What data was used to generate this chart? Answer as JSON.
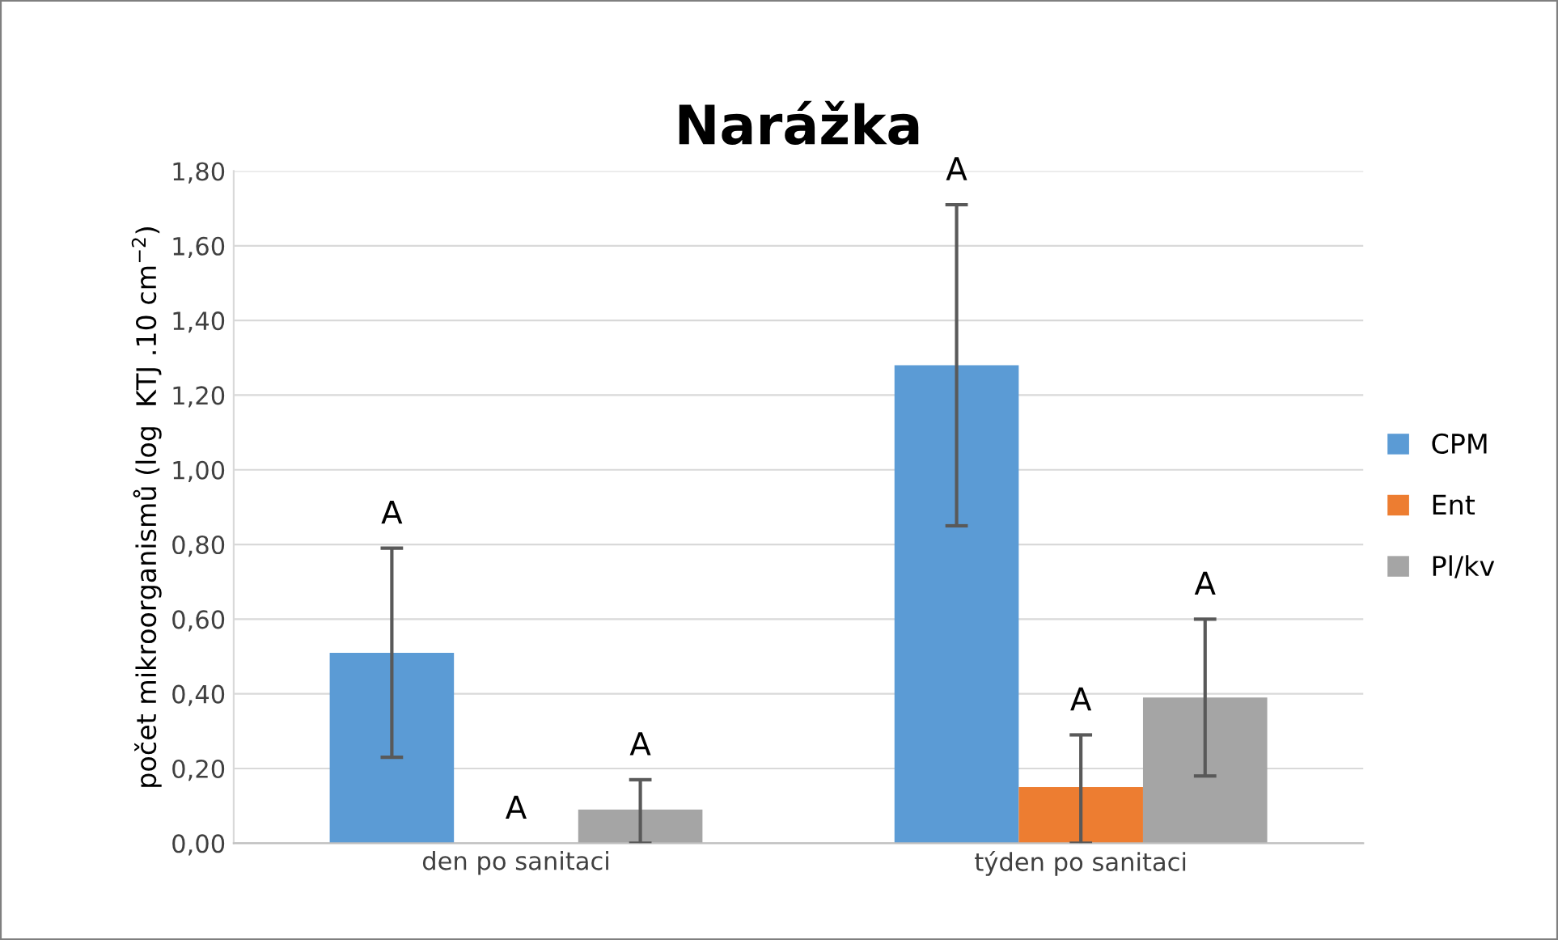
{
  "chart_data": {
    "type": "bar",
    "title": "Narážka",
    "ylabel": "počet mikroorganismů (log  KTJ .10 cm$^{−2}$)",
    "categories": [
      "den po sanitaci",
      "týden po sanitaci"
    ],
    "series": [
      {
        "name": "CPM",
        "color": "#5b9bd5",
        "values": [
          0.51,
          1.28
        ],
        "errors": [
          [
            0.23,
            0.79
          ],
          [
            0.85,
            1.71
          ]
        ]
      },
      {
        "name": "Ent",
        "color": "#ed7d31",
        "values": [
          0,
          0.15
        ],
        "errors": [
          null,
          [
            0,
            0.29
          ]
        ]
      },
      {
        "name": "Pl/kv",
        "color": "#a5a5a5",
        "values": [
          0.09,
          0.39
        ],
        "errors": [
          [
            0,
            0.17
          ],
          [
            0.18,
            0.6
          ]
        ]
      }
    ],
    "ylim": [
      0,
      1.8
    ],
    "yticks": [
      {
        "value": 0,
        "label": "0,00"
      },
      {
        "value": 0.2,
        "label": "0,20"
      },
      {
        "value": 0.4,
        "label": "0,40"
      },
      {
        "value": 0.6,
        "label": "0,60"
      },
      {
        "value": 0.8,
        "label": "0,80"
      },
      {
        "value": 1.0,
        "label": "1,00"
      },
      {
        "value": 1.2,
        "label": "1,20"
      },
      {
        "value": 1.4,
        "label": "1,40"
      },
      {
        "value": 1.6,
        "label": "1,60"
      },
      {
        "value": 1.8,
        "label": "1,80"
      }
    ],
    "grid": "y",
    "legend": "right",
    "annotations": [
      "A",
      "A",
      "A",
      "A",
      "A",
      "A"
    ]
  }
}
